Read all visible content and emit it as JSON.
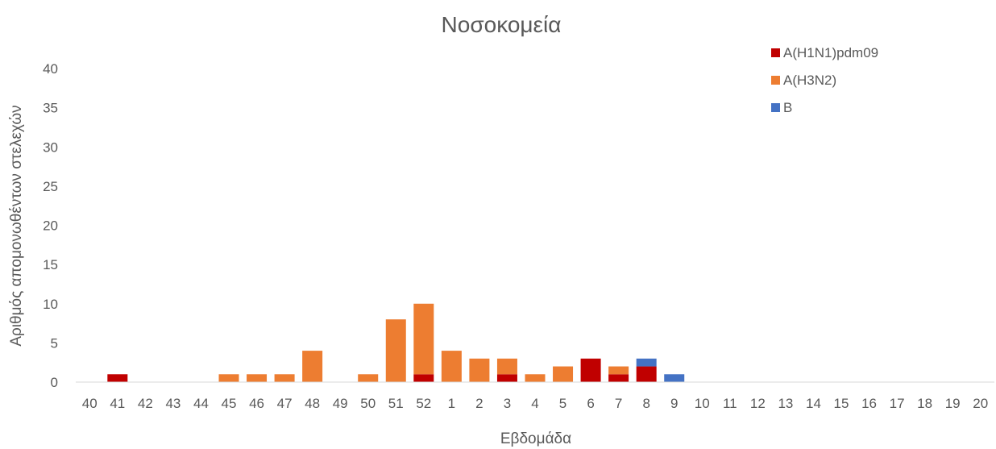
{
  "chart_data": {
    "type": "bar",
    "stacked": true,
    "title": "Νοσοκομεία",
    "xlabel": "Εβδομάδα",
    "ylabel": "Αριθμός απομονωθέντων στελεχών",
    "ylim": [
      0,
      40
    ],
    "yticks": [
      0,
      5,
      10,
      15,
      20,
      25,
      30,
      35,
      40
    ],
    "grid": false,
    "legend_position": "top-right",
    "categories": [
      "40",
      "41",
      "42",
      "43",
      "44",
      "45",
      "46",
      "47",
      "48",
      "49",
      "50",
      "51",
      "52",
      "1",
      "2",
      "3",
      "4",
      "5",
      "6",
      "7",
      "8",
      "9",
      "10",
      "11",
      "12",
      "13",
      "14",
      "15",
      "16",
      "17",
      "18",
      "19",
      "20"
    ],
    "series": [
      {
        "name": "A(H1N1)pdm09",
        "color": "#c00000",
        "values": [
          0,
          1,
          0,
          0,
          0,
          0,
          0,
          0,
          0,
          0,
          0,
          0,
          1,
          0,
          0,
          1,
          0,
          0,
          3,
          1,
          2,
          0,
          0,
          0,
          0,
          0,
          0,
          0,
          0,
          0,
          0,
          0,
          0
        ]
      },
      {
        "name": "A(H3N2)",
        "color": "#ed7d31",
        "values": [
          0,
          0,
          0,
          0,
          0,
          1,
          1,
          1,
          4,
          0,
          1,
          8,
          9,
          4,
          3,
          2,
          1,
          2,
          0,
          1,
          0,
          0,
          0,
          0,
          0,
          0,
          0,
          0,
          0,
          0,
          0,
          0,
          0
        ]
      },
      {
        "name": "B",
        "color": "#4472c4",
        "values": [
          0,
          0,
          0,
          0,
          0,
          0,
          0,
          0,
          0,
          0,
          0,
          0,
          0,
          0,
          0,
          0,
          0,
          0,
          0,
          0,
          1,
          1,
          0,
          0,
          0,
          0,
          0,
          0,
          0,
          0,
          0,
          0,
          0
        ]
      }
    ]
  }
}
